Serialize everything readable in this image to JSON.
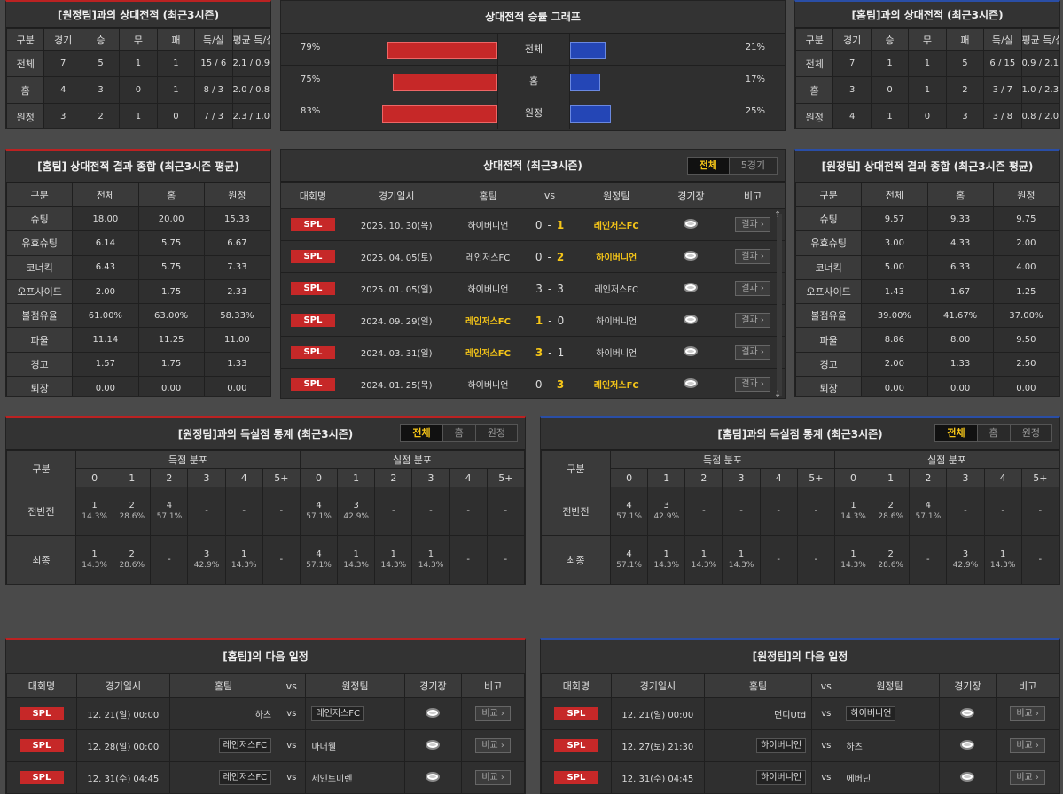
{
  "away_h2h": {
    "title": "[원정팀]과의 상대전적 (최근3시즌)",
    "headers": [
      "구분",
      "경기",
      "승",
      "무",
      "패",
      "득/실",
      "평균 득/실"
    ],
    "rows": [
      [
        "전체",
        "7",
        "5",
        "1",
        "1",
        "15 / 6",
        "2.1 / 0.9"
      ],
      [
        "홈",
        "4",
        "3",
        "0",
        "1",
        "8 / 3",
        "2.0 / 0.8"
      ],
      [
        "원정",
        "3",
        "2",
        "1",
        "0",
        "7 / 3",
        "2.3 / 1.0"
      ]
    ]
  },
  "graph": {
    "title": "상대전적 승률 그래프",
    "rows": [
      {
        "label": "전체",
        "left": "79%",
        "lv": 79,
        "right": "21%",
        "rv": 21
      },
      {
        "label": "홈",
        "left": "75%",
        "lv": 75,
        "right": "17%",
        "rv": 17
      },
      {
        "label": "원정",
        "left": "83%",
        "lv": 83,
        "right": "25%",
        "rv": 25
      }
    ]
  },
  "home_h2h": {
    "title": "[홈팀]과의 상대전적 (최근3시즌)",
    "headers": [
      "구분",
      "경기",
      "승",
      "무",
      "패",
      "득/실",
      "평균 득/실"
    ],
    "rows": [
      [
        "전체",
        "7",
        "1",
        "1",
        "5",
        "6 / 15",
        "0.9 / 2.1"
      ],
      [
        "홈",
        "3",
        "0",
        "1",
        "2",
        "3 / 7",
        "1.0 / 2.3"
      ],
      [
        "원정",
        "4",
        "1",
        "0",
        "3",
        "3 / 8",
        "0.8 / 2.0"
      ]
    ]
  },
  "home_summary": {
    "title": "[홈팀] 상대전적 결과 종합 (최근3시즌 평균)",
    "headers": [
      "구분",
      "전체",
      "홈",
      "원정"
    ],
    "rows": [
      [
        "슈팅",
        "18.00",
        "20.00",
        "15.33"
      ],
      [
        "유효슈팅",
        "6.14",
        "5.75",
        "6.67"
      ],
      [
        "코너킥",
        "6.43",
        "5.75",
        "7.33"
      ],
      [
        "오프사이드",
        "2.00",
        "1.75",
        "2.33"
      ],
      [
        "볼점유율",
        "61.00%",
        "63.00%",
        "58.33%"
      ],
      [
        "파울",
        "11.14",
        "11.25",
        "11.00"
      ],
      [
        "경고",
        "1.57",
        "1.75",
        "1.33"
      ],
      [
        "퇴장",
        "0.00",
        "0.00",
        "0.00"
      ]
    ]
  },
  "matches": {
    "title": "상대전적 (최근3시즌)",
    "tabs": [
      "전체",
      "5경기"
    ],
    "headers": {
      "league": "대회명",
      "date": "경기일시",
      "home": "홈팀",
      "vs": "vs",
      "away": "원정팀",
      "venue": "경기장",
      "note": "비고"
    },
    "rows": [
      {
        "league": "SPL",
        "date": "2025. 10. 30(목)",
        "home": "하이버니언",
        "hs": "0",
        "sep": "-",
        "as": "1",
        "away": "레인저스FC",
        "w": "a",
        "btn": "결과"
      },
      {
        "league": "SPL",
        "date": "2025. 04. 05(토)",
        "home": "레인저스FC",
        "hs": "0",
        "sep": "-",
        "as": "2",
        "away": "하이버니언",
        "w": "a",
        "btn": "결과"
      },
      {
        "league": "SPL",
        "date": "2025. 01. 05(일)",
        "home": "하이버니언",
        "hs": "3",
        "sep": "-",
        "as": "3",
        "away": "레인저스FC",
        "w": "",
        "btn": "결과"
      },
      {
        "league": "SPL",
        "date": "2024. 09. 29(일)",
        "home": "레인저스FC",
        "hs": "1",
        "sep": "-",
        "as": "0",
        "away": "하이버니언",
        "w": "h",
        "btn": "결과"
      },
      {
        "league": "SPL",
        "date": "2024. 03. 31(일)",
        "home": "레인저스FC",
        "hs": "3",
        "sep": "-",
        "as": "1",
        "away": "하이버니언",
        "w": "h",
        "btn": "결과"
      },
      {
        "league": "SPL",
        "date": "2024. 01. 25(목)",
        "home": "하이버니언",
        "hs": "0",
        "sep": "-",
        "as": "3",
        "away": "레인저스FC",
        "w": "a",
        "btn": "결과"
      }
    ]
  },
  "away_summary": {
    "title": "[원정팀] 상대전적 결과 종합 (최근3시즌 평균)",
    "headers": [
      "구분",
      "전체",
      "홈",
      "원정"
    ],
    "rows": [
      [
        "슈팅",
        "9.57",
        "9.33",
        "9.75"
      ],
      [
        "유효슈팅",
        "3.00",
        "4.33",
        "2.00"
      ],
      [
        "코너킥",
        "5.00",
        "6.33",
        "4.00"
      ],
      [
        "오프사이드",
        "1.43",
        "1.67",
        "1.25"
      ],
      [
        "볼점유율",
        "39.00%",
        "41.67%",
        "37.00%"
      ],
      [
        "파울",
        "8.86",
        "8.00",
        "9.50"
      ],
      [
        "경고",
        "2.00",
        "1.33",
        "2.50"
      ],
      [
        "퇴장",
        "0.00",
        "0.00",
        "0.00"
      ]
    ]
  },
  "away_goals": {
    "title": "[원정팀]과의 득실점 통계 (최근3시즌)",
    "tabs": [
      "전체",
      "홈",
      "원정"
    ],
    "label": "구분",
    "scored": "득점 분포",
    "conceded": "실점 분포",
    "cols": [
      "0",
      "1",
      "2",
      "3",
      "4",
      "5+"
    ],
    "rows": [
      {
        "label": "전반전",
        "s": [
          [
            "1",
            "14.3%"
          ],
          [
            "2",
            "28.6%"
          ],
          [
            "4",
            "57.1%"
          ],
          [
            "-",
            ""
          ],
          [
            "-",
            ""
          ],
          [
            "-",
            ""
          ]
        ],
        "c": [
          [
            "4",
            "57.1%"
          ],
          [
            "3",
            "42.9%"
          ],
          [
            "-",
            ""
          ],
          [
            "-",
            ""
          ],
          [
            "-",
            ""
          ],
          [
            "-",
            ""
          ]
        ]
      },
      {
        "label": "최종",
        "s": [
          [
            "1",
            "14.3%"
          ],
          [
            "2",
            "28.6%"
          ],
          [
            "-",
            ""
          ],
          [
            "3",
            "42.9%"
          ],
          [
            "1",
            "14.3%"
          ],
          [
            "-",
            ""
          ]
        ],
        "c": [
          [
            "4",
            "57.1%"
          ],
          [
            "1",
            "14.3%"
          ],
          [
            "1",
            "14.3%"
          ],
          [
            "1",
            "14.3%"
          ],
          [
            "-",
            ""
          ],
          [
            "-",
            ""
          ]
        ]
      }
    ]
  },
  "home_goals": {
    "title": "[홈팀]과의 득실점 통계 (최근3시즌)",
    "tabs": [
      "전체",
      "홈",
      "원정"
    ],
    "label": "구분",
    "scored": "득점 분포",
    "conceded": "실점 분포",
    "cols": [
      "0",
      "1",
      "2",
      "3",
      "4",
      "5+"
    ],
    "rows": [
      {
        "label": "전반전",
        "s": [
          [
            "4",
            "57.1%"
          ],
          [
            "3",
            "42.9%"
          ],
          [
            "-",
            ""
          ],
          [
            "-",
            ""
          ],
          [
            "-",
            ""
          ],
          [
            "-",
            ""
          ]
        ],
        "c": [
          [
            "1",
            "14.3%"
          ],
          [
            "2",
            "28.6%"
          ],
          [
            "4",
            "57.1%"
          ],
          [
            "-",
            ""
          ],
          [
            "-",
            ""
          ],
          [
            "-",
            ""
          ]
        ]
      },
      {
        "label": "최종",
        "s": [
          [
            "4",
            "57.1%"
          ],
          [
            "1",
            "14.3%"
          ],
          [
            "1",
            "14.3%"
          ],
          [
            "1",
            "14.3%"
          ],
          [
            "-",
            ""
          ],
          [
            "-",
            ""
          ]
        ],
        "c": [
          [
            "1",
            "14.3%"
          ],
          [
            "2",
            "28.6%"
          ],
          [
            "-",
            ""
          ],
          [
            "3",
            "42.9%"
          ],
          [
            "1",
            "14.3%"
          ],
          [
            "-",
            ""
          ]
        ]
      }
    ]
  },
  "home_next": {
    "title": "[홈팀]의 다음 일정",
    "headers": {
      "league": "대회명",
      "date": "경기일시",
      "home": "홈팀",
      "vs": "vs",
      "away": "원정팀",
      "venue": "경기장",
      "note": "비고"
    },
    "rows": [
      {
        "league": "SPL",
        "date": "12. 21(일) 00:00",
        "home": "하츠",
        "vs": "vs",
        "away": "레인저스FC",
        "tag": "a",
        "btn": "비교"
      },
      {
        "league": "SPL",
        "date": "12. 28(일) 00:00",
        "home": "레인저스FC",
        "vs": "vs",
        "away": "마더웰",
        "tag": "h",
        "btn": "비교"
      },
      {
        "league": "SPL",
        "date": "12. 31(수) 04:45",
        "home": "레인저스FC",
        "vs": "vs",
        "away": "세인트미렌",
        "tag": "h",
        "btn": "비교"
      }
    ]
  },
  "away_next": {
    "title": "[원정팀]의 다음 일정",
    "headers": {
      "league": "대회명",
      "date": "경기일시",
      "home": "홈팀",
      "vs": "vs",
      "away": "원정팀",
      "venue": "경기장",
      "note": "비고"
    },
    "rows": [
      {
        "league": "SPL",
        "date": "12. 21(일) 00:00",
        "home": "던디Utd",
        "vs": "vs",
        "away": "하이버니언",
        "tag": "a",
        "btn": "비교"
      },
      {
        "league": "SPL",
        "date": "12. 27(토) 21:30",
        "home": "하이버니언",
        "vs": "vs",
        "away": "하츠",
        "tag": "h",
        "btn": "비교"
      },
      {
        "league": "SPL",
        "date": "12. 31(수) 04:45",
        "home": "하이버니언",
        "vs": "vs",
        "away": "에버딘",
        "tag": "h",
        "btn": "비교"
      }
    ]
  }
}
